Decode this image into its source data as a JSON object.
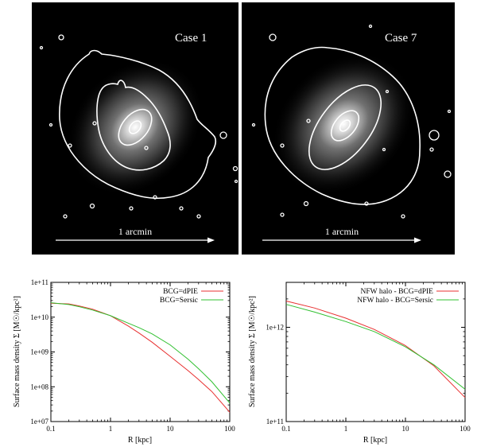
{
  "images": [
    {
      "label": "Case 1",
      "scale_text": "1 arcmin"
    },
    {
      "label": "Case 7",
      "scale_text": "1 arcmin"
    }
  ],
  "chart_data": [
    {
      "type": "line",
      "title": "",
      "xlabel": "R [kpc]",
      "ylabel": "Surface mass density Σ [M☉/kpc²]",
      "xscale": "log",
      "yscale": "log",
      "xlim": [
        0.1,
        100
      ],
      "ylim": [
        10000000.0,
        100000000000.0
      ],
      "xticks": [
        "0.1",
        "1",
        "10",
        "100"
      ],
      "yticks": [
        "1e+07",
        "1e+08",
        "1e+09",
        "1e+10",
        "1e+11"
      ],
      "legend": "top-right",
      "series": [
        {
          "name": "BCG=dPIE",
          "color": "#e83030",
          "x": [
            0.1,
            0.2,
            0.3,
            0.5,
            1,
            2,
            3,
            5,
            10,
            20,
            30,
            50,
            100
          ],
          "y": [
            25000000000.0,
            24000000000.0,
            21000000000.0,
            17000000000.0,
            11000000000.0,
            5500000000.0,
            3500000000.0,
            1900000000.0,
            750000000.0,
            290000000.0,
            160000000.0,
            73000000.0,
            18500000.0
          ]
        },
        {
          "name": "BCG=Sersic",
          "color": "#30c030",
          "x": [
            0.1,
            0.2,
            0.3,
            0.5,
            1,
            2,
            3,
            5,
            10,
            20,
            30,
            50,
            100
          ],
          "y": [
            26000000000.0,
            23000000000.0,
            20000000000.0,
            16000000000.0,
            11000000000.0,
            6700000000.0,
            5000000000.0,
            3300000000.0,
            1600000000.0,
            620000000.0,
            330000000.0,
            140000000.0,
            34000000.0
          ]
        }
      ]
    },
    {
      "type": "line",
      "title": "",
      "xlabel": "R [kpc]",
      "ylabel": "Surface mass density Σ [M☉/kpc²]",
      "xscale": "log",
      "yscale": "log",
      "xlim": [
        0.1,
        100
      ],
      "ylim": [
        100000000000.0,
        3000000000000.0
      ],
      "xticks": [
        "0.1",
        "1",
        "10",
        "100"
      ],
      "yticks": [
        "1e+11",
        "1e+12"
      ],
      "legend": "top-right",
      "series": [
        {
          "name": "NFW halo - BCG=dPIE",
          "color": "#e83030",
          "x": [
            0.1,
            0.3,
            1,
            3,
            10,
            30,
            100
          ],
          "y": [
            1900000000000.0,
            1600000000000.0,
            1250000000000.0,
            950000000000.0,
            640000000000.0,
            390000000000.0,
            180000000000.0
          ]
        },
        {
          "name": "NFW halo - BCG=Sersic",
          "color": "#30c030",
          "x": [
            0.1,
            0.3,
            1,
            3,
            10,
            30,
            100
          ],
          "y": [
            1750000000000.0,
            1450000000000.0,
            1150000000000.0,
            900000000000.0,
            620000000000.0,
            400000000000.0,
            220000000000.0
          ]
        }
      ]
    }
  ]
}
